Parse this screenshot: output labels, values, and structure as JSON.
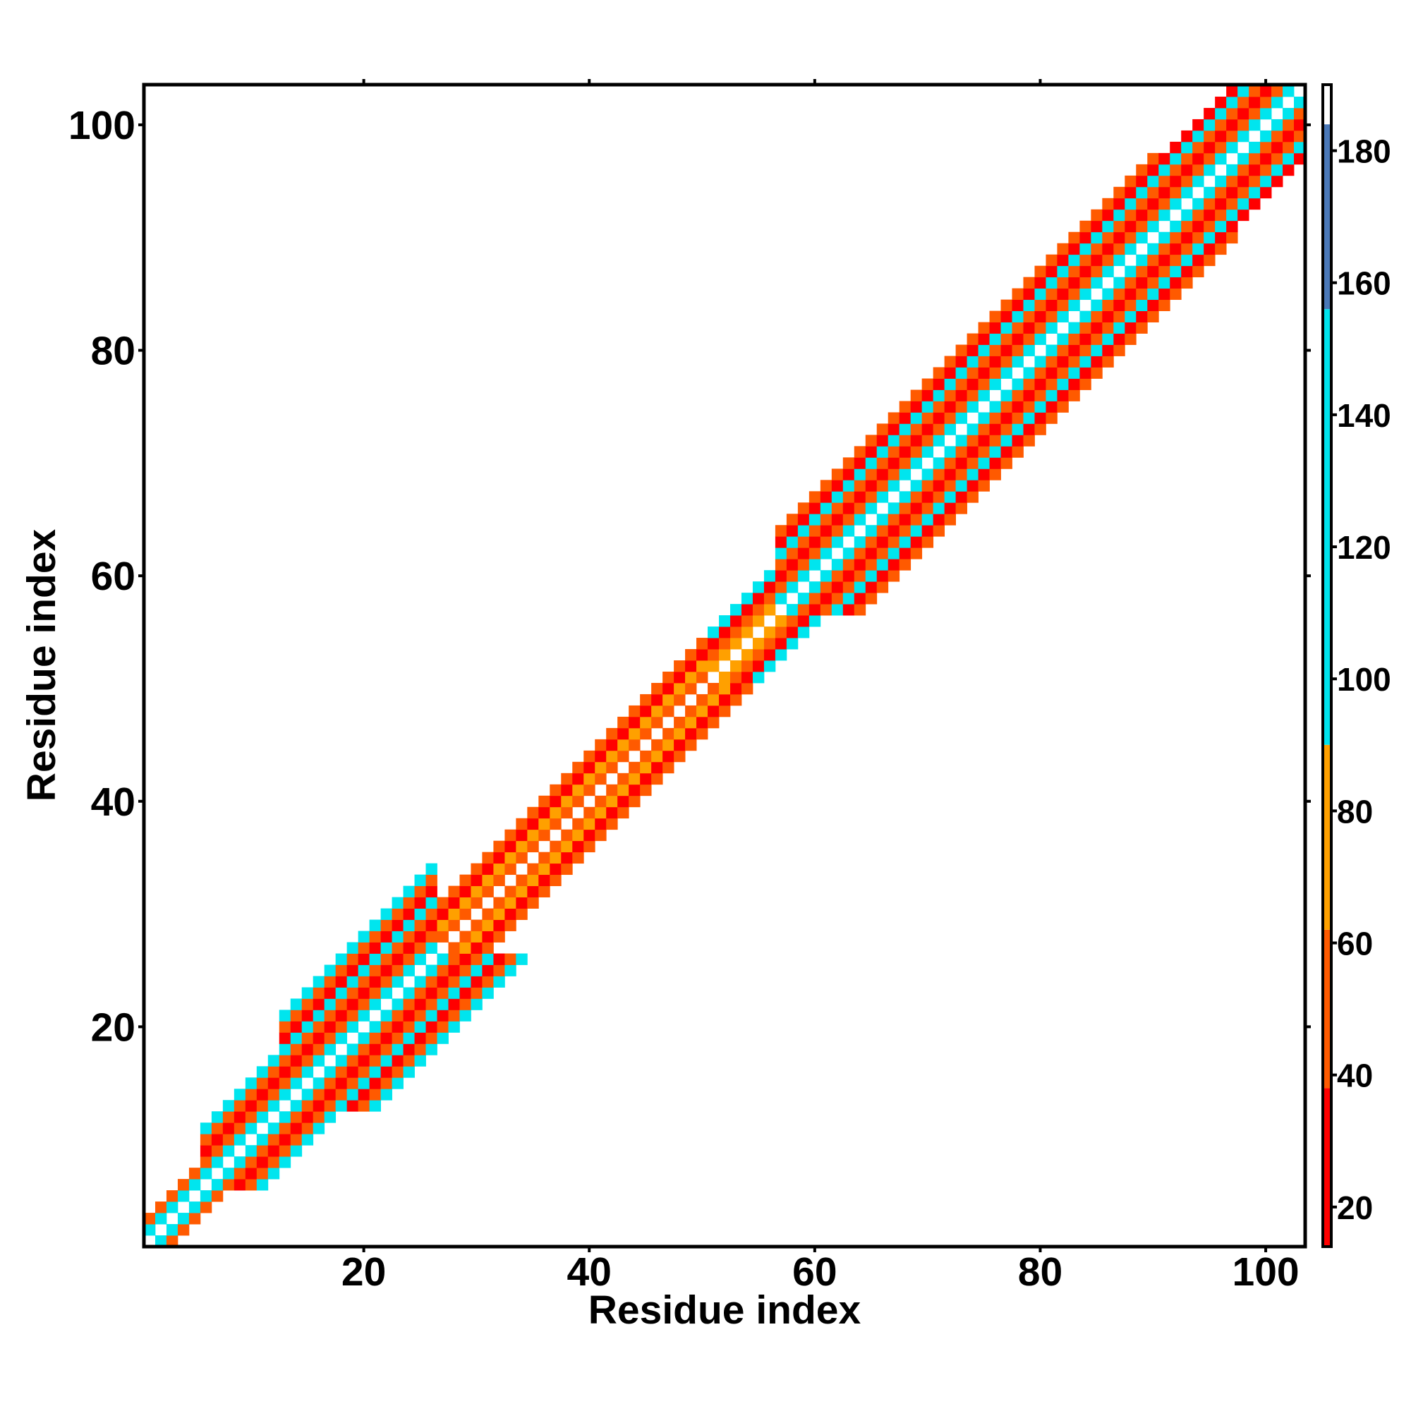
{
  "chart_data": {
    "type": "heatmap",
    "title": "",
    "xlabel": "Residue index",
    "ylabel": "Residue index",
    "x_range": [
      1,
      103
    ],
    "y_range": [
      1,
      103
    ],
    "x_ticks": [
      20,
      40,
      60,
      80,
      100
    ],
    "y_ticks": [
      20,
      40,
      60,
      80,
      100
    ],
    "grid": false,
    "legend": "colorbar-right",
    "colorbar": {
      "range": [
        14,
        190
      ],
      "ticks": [
        20,
        40,
        60,
        80,
        100,
        120,
        140,
        160,
        180
      ],
      "bands": [
        {
          "from": 14,
          "to": 38,
          "color": "#ff0000"
        },
        {
          "from": 38,
          "to": 62,
          "color": "#ff5a00"
        },
        {
          "from": 62,
          "to": 90,
          "color": "#ffa000"
        },
        {
          "from": 90,
          "to": 156,
          "color": "#00e5ee"
        },
        {
          "from": 156,
          "to": 184,
          "color": "#4a78b8"
        },
        {
          "from": 184,
          "to": 190,
          "color": "#ffffff"
        }
      ]
    },
    "segment_half_widths": [
      {
        "from": 1,
        "to": 5,
        "half_width": 2
      },
      {
        "from": 6,
        "to": 12,
        "half_width": 5
      },
      {
        "from": 13,
        "to": 26,
        "half_width": 8
      },
      {
        "from": 27,
        "to": 50,
        "half_width": 4
      },
      {
        "from": 51,
        "to": 56,
        "half_width": 4
      },
      {
        "from": 57,
        "to": 90,
        "half_width": 7
      },
      {
        "from": 91,
        "to": 103,
        "half_width": 6
      }
    ],
    "cell_values_by_offset": {
      "1": 128,
      "2": 52,
      "3": 30,
      "4": 52,
      "5": 128,
      "6": 30,
      "7": 52,
      "8": 128
    },
    "segment_value_overrides": [
      {
        "from": 27,
        "to": 50,
        "offsets": {
          "1": 52,
          "2": 78,
          "3": 30,
          "4": 52
        }
      },
      {
        "from": 51,
        "to": 56,
        "offsets": {
          "1": 78,
          "2": 52,
          "3": 30,
          "4": 128
        }
      }
    ]
  }
}
